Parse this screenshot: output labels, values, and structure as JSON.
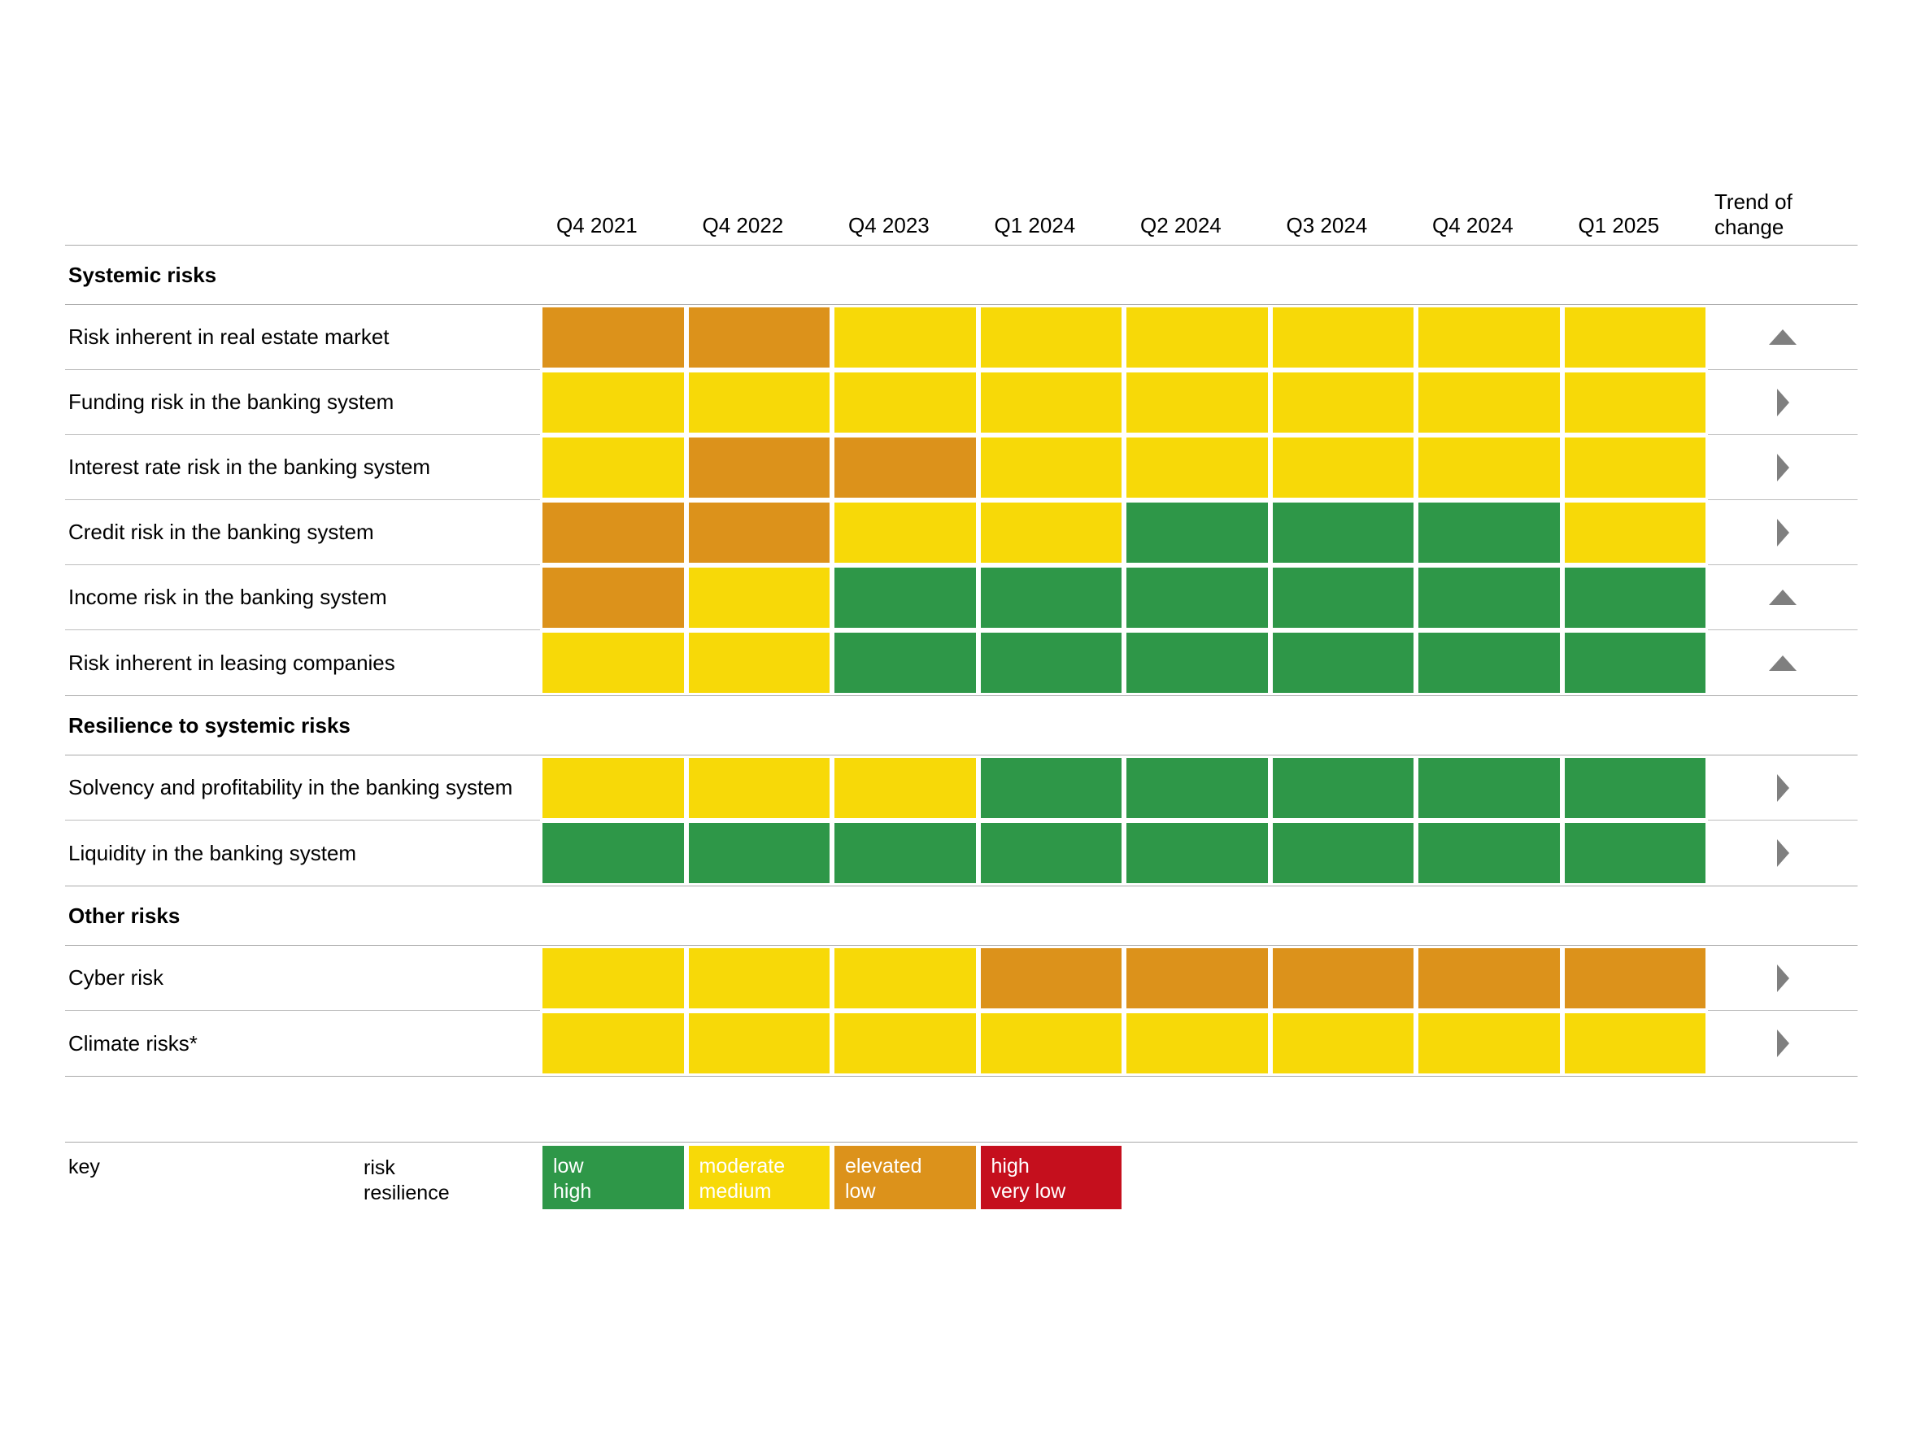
{
  "chart_data": {
    "type": "heatmap",
    "title": "",
    "columns": [
      "Q4 2021",
      "Q4 2022",
      "Q4 2023",
      "Q1 2024",
      "Q2 2024",
      "Q3 2024",
      "Q4 2024",
      "Q1 2025"
    ],
    "trend_column_label": "Trend of change",
    "levels": [
      {
        "id": "green",
        "color": "#2E9748",
        "risk_label": "low",
        "resilience_label": "high"
      },
      {
        "id": "yellow",
        "color": "#F7D908",
        "risk_label": "moderate",
        "resilience_label": "medium"
      },
      {
        "id": "orange",
        "color": "#DC921B",
        "risk_label": "elevated",
        "resilience_label": "low"
      },
      {
        "id": "red",
        "color": "#C50F1D",
        "risk_label": "high",
        "resilience_label": "very low"
      }
    ],
    "trend_icons": {
      "up": "triangle-up",
      "right": "triangle-right"
    },
    "sections": [
      {
        "title": "Systemic risks",
        "rows": [
          {
            "label": "Risk inherent in real estate market",
            "values": [
              "orange",
              "orange",
              "yellow",
              "yellow",
              "yellow",
              "yellow",
              "yellow",
              "yellow"
            ],
            "trend": "up"
          },
          {
            "label": "Funding risk in the banking system",
            "values": [
              "yellow",
              "yellow",
              "yellow",
              "yellow",
              "yellow",
              "yellow",
              "yellow",
              "yellow"
            ],
            "trend": "right"
          },
          {
            "label": "Interest rate risk in the banking system",
            "values": [
              "yellow",
              "orange",
              "orange",
              "yellow",
              "yellow",
              "yellow",
              "yellow",
              "yellow"
            ],
            "trend": "right"
          },
          {
            "label": "Credit risk in the banking system",
            "values": [
              "orange",
              "orange",
              "yellow",
              "yellow",
              "green",
              "green",
              "green",
              "yellow"
            ],
            "trend": "right"
          },
          {
            "label": "Income risk in the banking system",
            "values": [
              "orange",
              "yellow",
              "green",
              "green",
              "green",
              "green",
              "green",
              "green"
            ],
            "trend": "up"
          },
          {
            "label": "Risk inherent in leasing companies",
            "values": [
              "yellow",
              "yellow",
              "green",
              "green",
              "green",
              "green",
              "green",
              "green"
            ],
            "trend": "up"
          }
        ]
      },
      {
        "title": "Resilience to systemic risks",
        "rows": [
          {
            "label": "Solvency and profitability in the banking system",
            "values": [
              "yellow",
              "yellow",
              "yellow",
              "green",
              "green",
              "green",
              "green",
              "green"
            ],
            "trend": "right"
          },
          {
            "label": "Liquidity in the banking system",
            "values": [
              "green",
              "green",
              "green",
              "green",
              "green",
              "green",
              "green",
              "green"
            ],
            "trend": "right"
          }
        ]
      },
      {
        "title": "Other risks",
        "rows": [
          {
            "label": "Cyber risk",
            "values": [
              "yellow",
              "yellow",
              "yellow",
              "orange",
              "orange",
              "orange",
              "orange",
              "orange"
            ],
            "trend": "right"
          },
          {
            "label": "Climate risks*",
            "values": [
              "yellow",
              "yellow",
              "yellow",
              "yellow",
              "yellow",
              "yellow",
              "yellow",
              "yellow"
            ],
            "trend": "right"
          }
        ]
      }
    ],
    "legend": {
      "title": "key",
      "row_label_line1": "risk",
      "row_label_line2": "resilience"
    },
    "layout": {
      "grid": "off",
      "legend_position": "bottom-left"
    }
  },
  "colors": {
    "arrow_gray": "#7F7F7F",
    "line_gray": "#A9A9A9",
    "background": "#FFFFFF"
  }
}
